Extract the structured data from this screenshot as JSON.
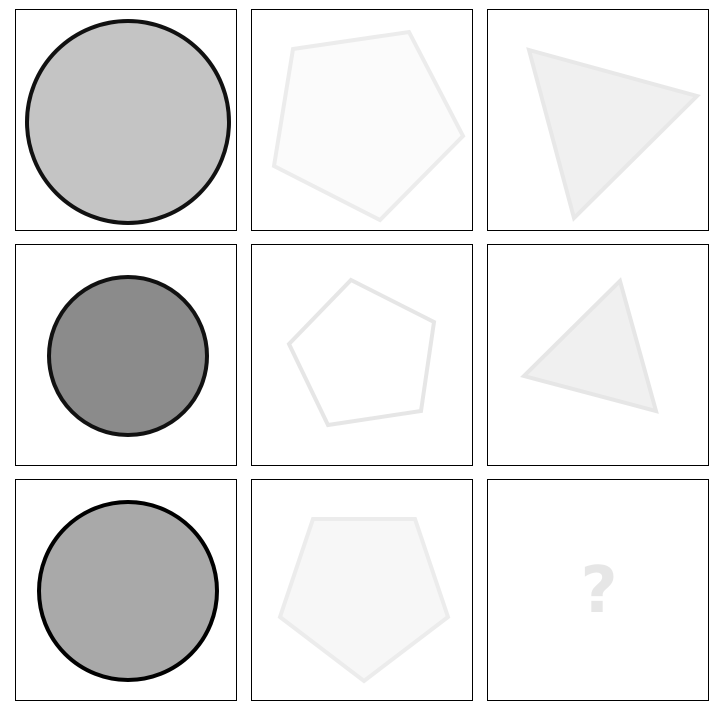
{
  "puzzle": {
    "cells": [
      {
        "row": 1,
        "col": 1,
        "shape": "circle",
        "fill": "#c4c4c4",
        "stroke": "#111111"
      },
      {
        "row": 1,
        "col": 2,
        "shape": "pentagon",
        "fill": "#fbfbfb",
        "stroke": "#ececec"
      },
      {
        "row": 1,
        "col": 3,
        "shape": "triangle",
        "fill": "#f0f0f0",
        "stroke": "#e8e8e8"
      },
      {
        "row": 2,
        "col": 1,
        "shape": "circle",
        "fill": "#8b8b8b",
        "stroke": "#111111"
      },
      {
        "row": 2,
        "col": 2,
        "shape": "pentagon",
        "fill": "#ffffff",
        "stroke": "#e6e6e6"
      },
      {
        "row": 2,
        "col": 3,
        "shape": "triangle",
        "fill": "#f0f0f0",
        "stroke": "#e6e6e6"
      },
      {
        "row": 3,
        "col": 1,
        "shape": "circle",
        "fill": "#a9a9a9",
        "stroke": "#000000"
      },
      {
        "row": 3,
        "col": 2,
        "shape": "pentagon",
        "fill": "#f7f7f7",
        "stroke": "#ececec"
      },
      {
        "row": 3,
        "col": 3,
        "shape": "unknown"
      }
    ],
    "missing_label": "?"
  }
}
